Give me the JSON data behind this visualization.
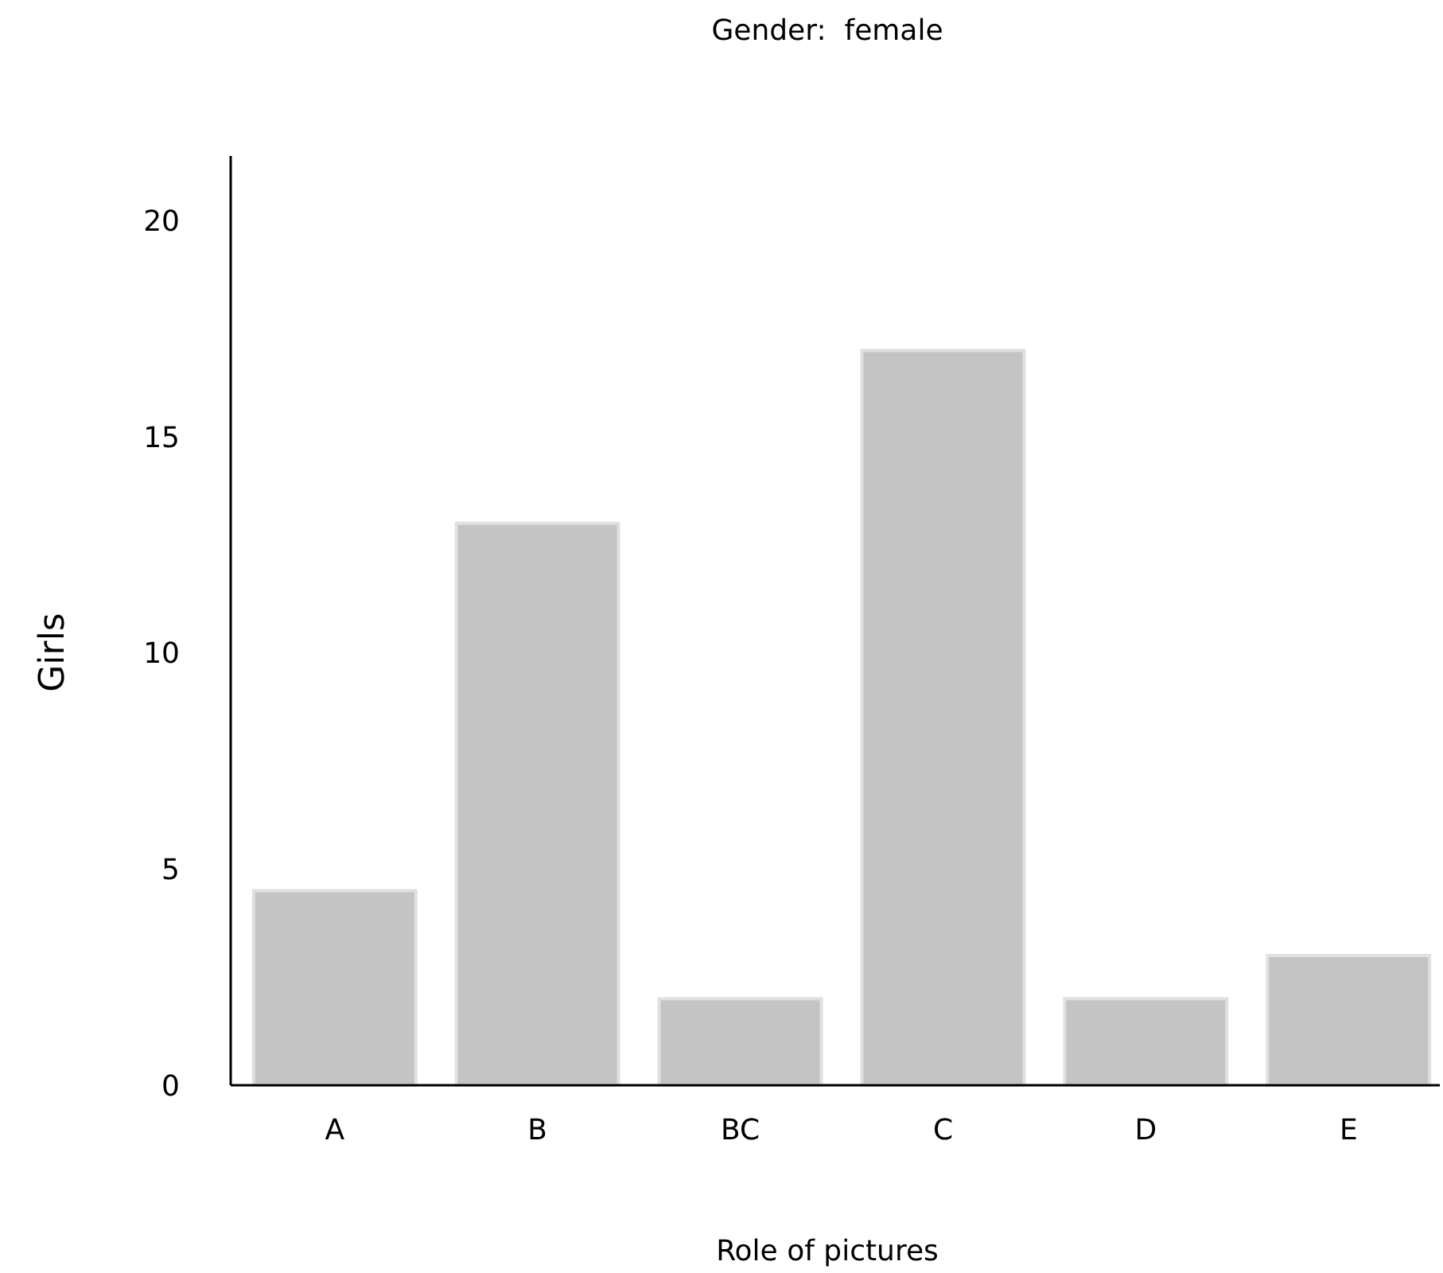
{
  "chart_data": {
    "type": "bar",
    "title": "Gender:  female",
    "xlabel": "Role of pictures",
    "ylabel": "Girls",
    "categories": [
      "A",
      "B",
      "BC",
      "C",
      "D",
      "E"
    ],
    "values": [
      4.5,
      13,
      2,
      17,
      2,
      3
    ],
    "color": "#c4c4c4",
    "ylim": [
      0,
      21.5
    ],
    "yticks": [
      0,
      5,
      10,
      15,
      20
    ],
    "grid": false
  }
}
